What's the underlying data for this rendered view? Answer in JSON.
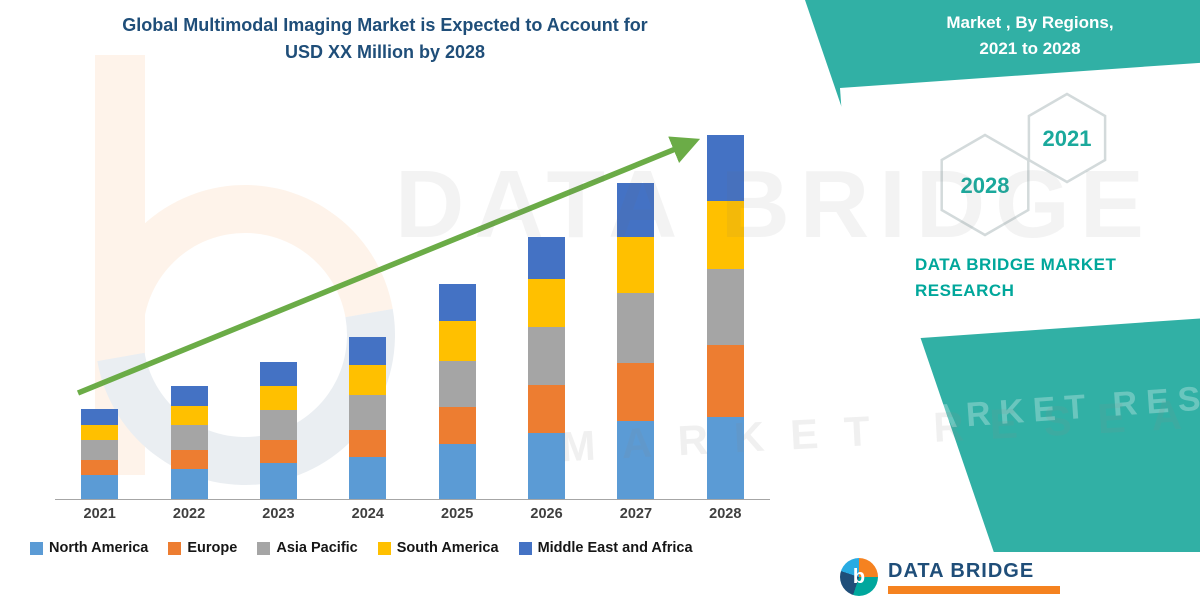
{
  "title": {
    "line1": "Global Multimodal Imaging Market is Expected to Account for",
    "line2": "USD XX Million by 2028"
  },
  "banner": {
    "line1": "Market , By Regions,",
    "line2": "2021 to 2028"
  },
  "side": {
    "hex_back_year": "2028",
    "hex_front_year": "2021",
    "brand": "DATA BRIDGE MARKET RESEARCH"
  },
  "watermark": {
    "primary": "DATA BRIDGE",
    "secondary": "MARKET RESEARCH"
  },
  "footer": {
    "brand": "DATA BRIDGE",
    "monogram": "b"
  },
  "colors": {
    "teal": "#31b0a5",
    "title_navy": "#1f4e79",
    "arrow_green": "#6bac47",
    "axis_gray": "#a6a6a6"
  },
  "chart_data": {
    "type": "bar",
    "stacked": true,
    "title": "Global Multimodal Imaging Market is Expected to Account for USD XX Million by 2028",
    "xlabel": "",
    "ylabel": "",
    "categories": [
      "2021",
      "2022",
      "2023",
      "2024",
      "2025",
      "2026",
      "2027",
      "2028"
    ],
    "series": [
      {
        "name": "North America",
        "color": "#5B9BD5",
        "values": [
          24,
          30,
          36,
          42,
          55,
          66,
          78,
          82
        ]
      },
      {
        "name": "Europe",
        "color": "#ED7D31",
        "values": [
          15,
          19,
          23,
          27,
          37,
          48,
          58,
          72
        ]
      },
      {
        "name": "Asia Pacific",
        "color": "#A5A5A5",
        "values": [
          20,
          25,
          30,
          35,
          46,
          58,
          70,
          76
        ]
      },
      {
        "name": "South America",
        "color": "#FFC000",
        "values": [
          15,
          19,
          24,
          30,
          40,
          48,
          56,
          68
        ]
      },
      {
        "name": "Middle East and Africa",
        "color": "#4472C4",
        "values": [
          16,
          20,
          24,
          28,
          37,
          42,
          54,
          66
        ]
      }
    ],
    "ylim": [
      0,
      400
    ],
    "grid": false,
    "legend_position": "bottom",
    "annotations": [
      "upward green trend arrow from 2021 to 2028"
    ]
  }
}
